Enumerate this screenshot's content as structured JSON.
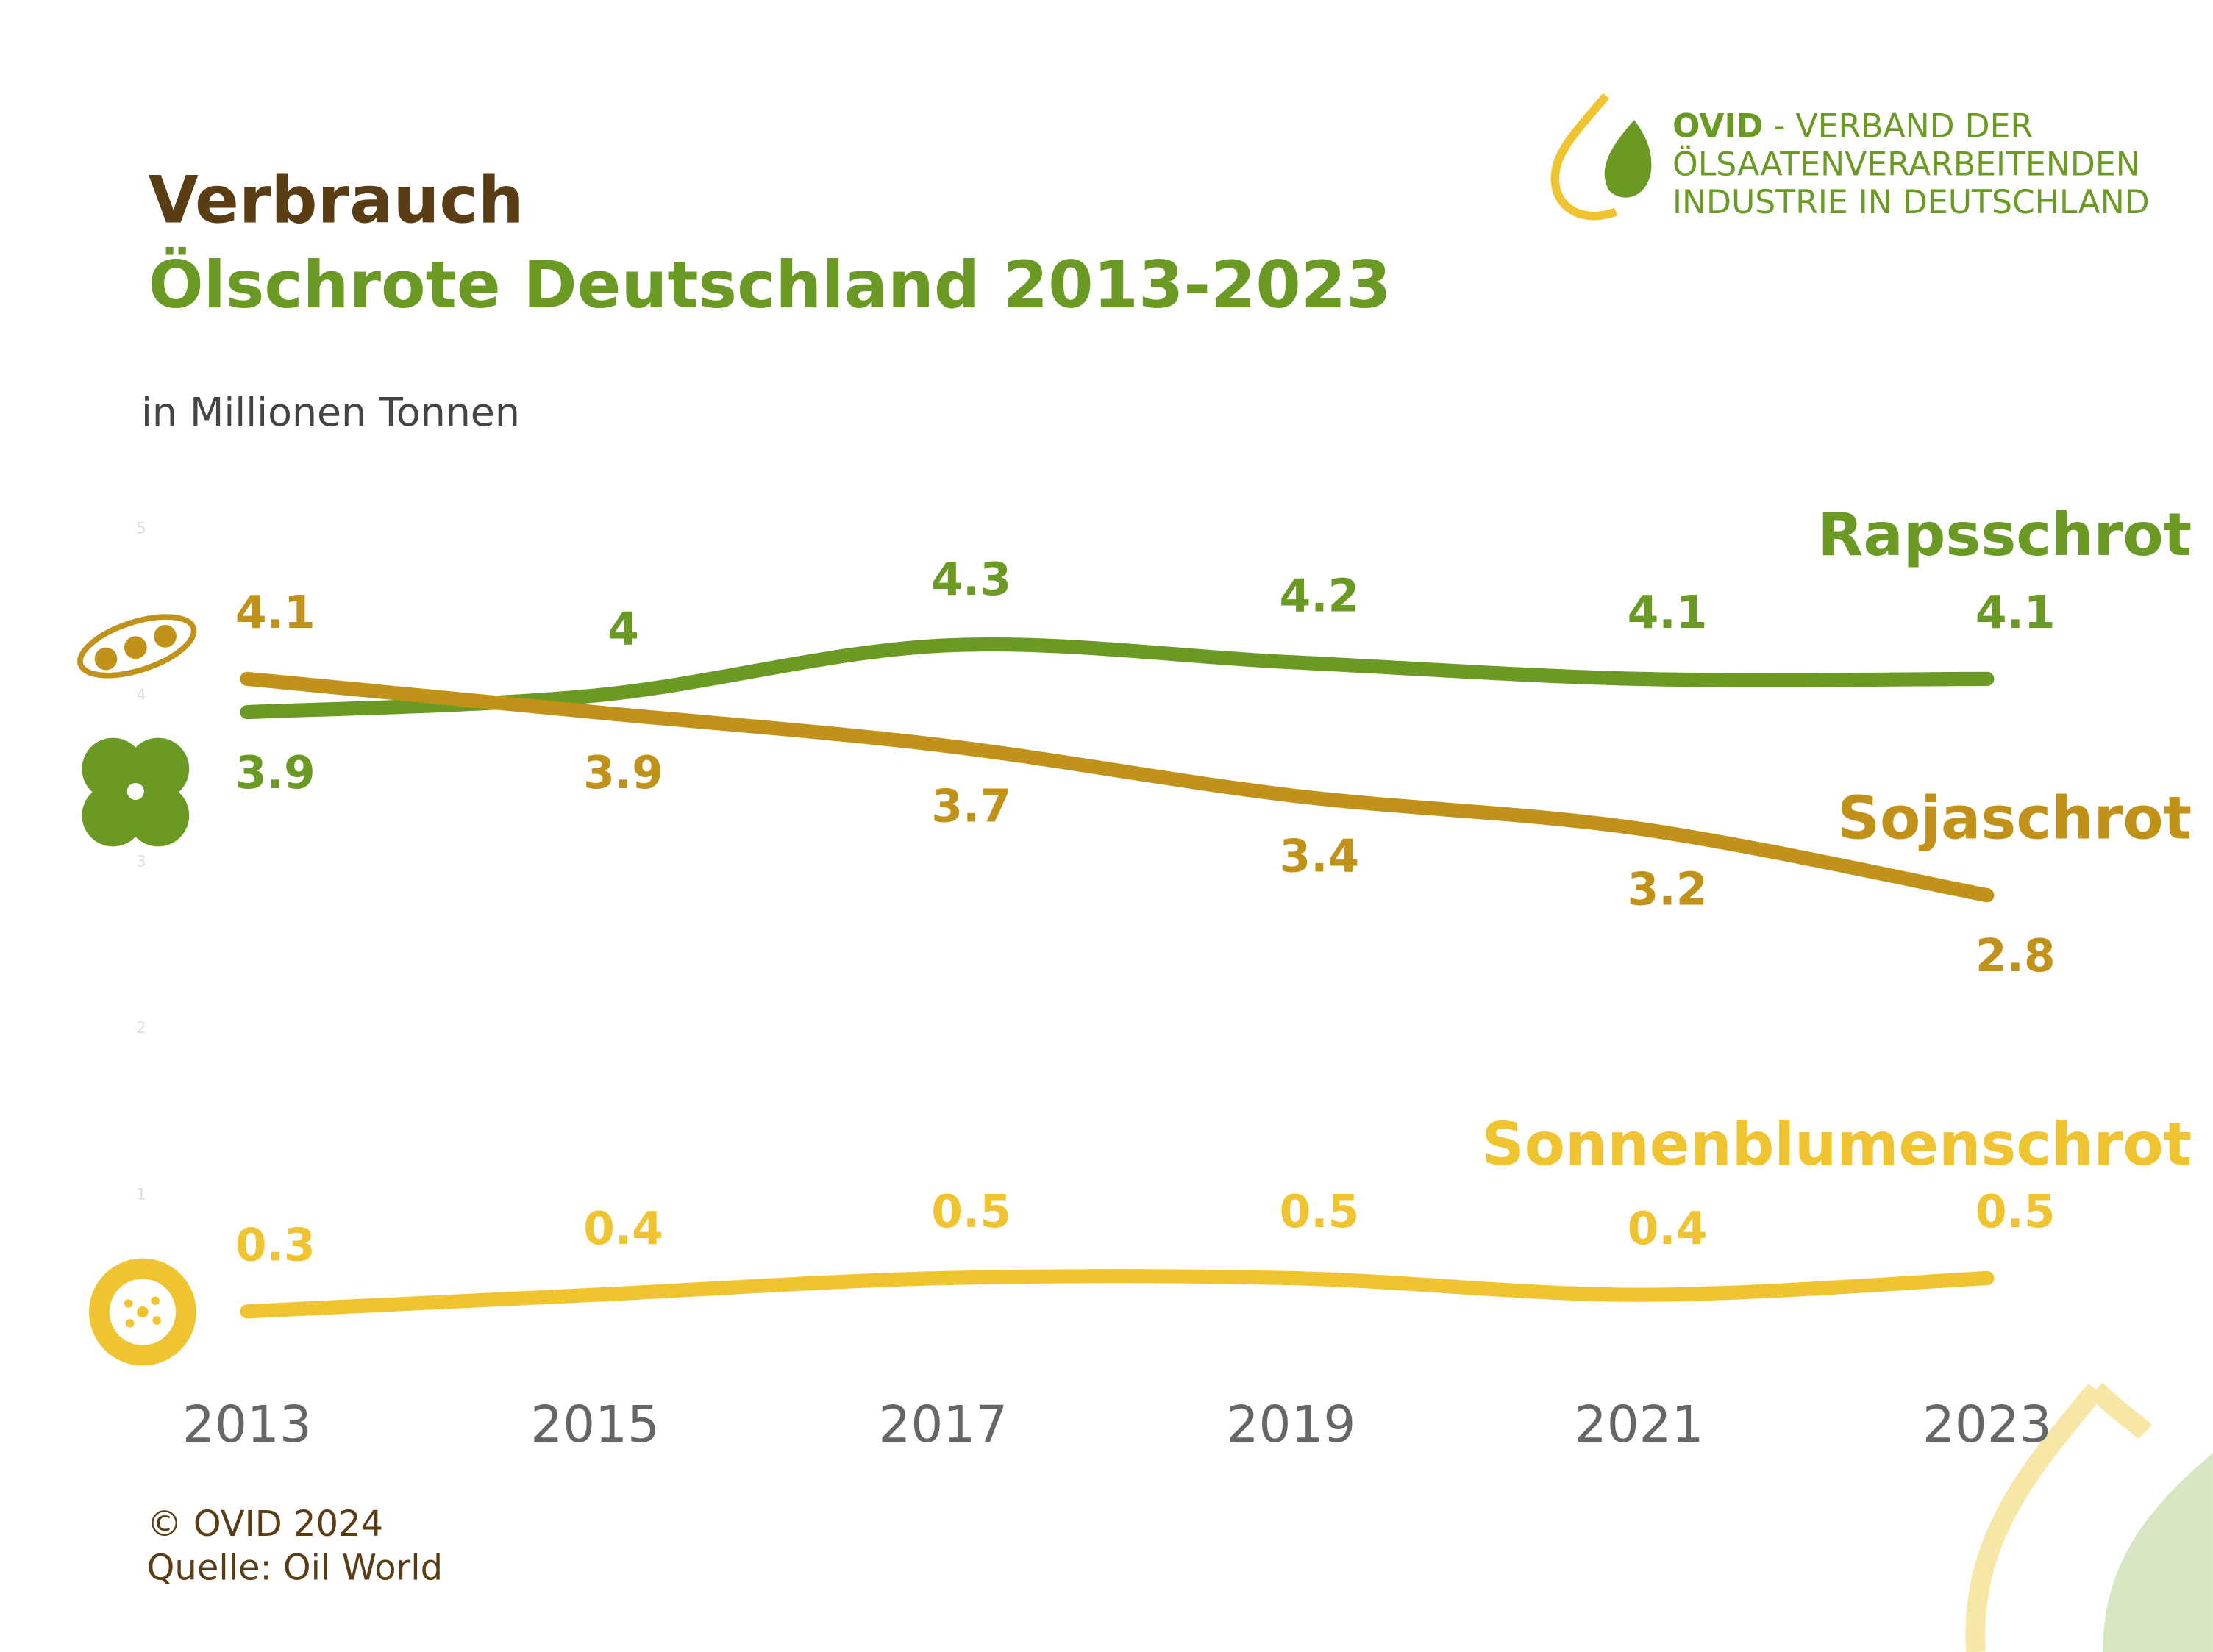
{
  "logo": {
    "brand": "OVID",
    "lines": [
      "- VERBAND DER",
      "ÖLSAATENVERARBEITENDEN",
      "INDUSTRIE IN DEUTSCHLAND"
    ]
  },
  "chart_data": {
    "type": "line",
    "title": "Verbrauch",
    "subtitle": "Ölschrote Deutschland 2013-2023",
    "y_label": "in Millionen Tonnen",
    "x": [
      2013,
      2015,
      2017,
      2019,
      2021,
      2023
    ],
    "xlim": [
      2013,
      2023
    ],
    "xticks": [
      2013,
      2015,
      2017,
      2019,
      2021,
      2023
    ],
    "ylim": [
      0,
      5
    ],
    "yticks": [
      1,
      2,
      3,
      4,
      5
    ],
    "series": [
      {
        "name": "Rapsschrot",
        "color": "#6a9a23",
        "values": [
          3.9,
          4.0,
          4.3,
          4.2,
          4.1,
          4.1
        ]
      },
      {
        "name": "Sojaschrot",
        "color": "#c1921a",
        "values": [
          4.1,
          3.9,
          3.7,
          3.4,
          3.2,
          2.8
        ]
      },
      {
        "name": "Sonnenblumenschrot",
        "color": "#f0c330",
        "values": [
          0.3,
          0.4,
          0.5,
          0.5,
          0.4,
          0.5
        ]
      }
    ],
    "footer": [
      "© OVID 2024",
      "Quelle: Oil World"
    ]
  }
}
